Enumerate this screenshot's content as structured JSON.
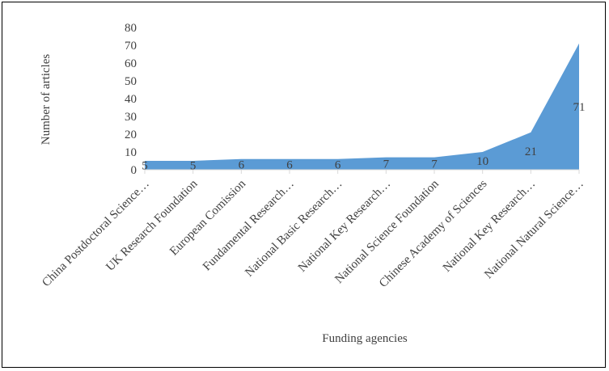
{
  "chart_data": {
    "type": "area",
    "categories": [
      "China Postdoctoral Science…",
      "UK Research Foundation",
      "European Comission",
      "Fundamental Research…",
      "National Basic Research…",
      "National Key Research…",
      "National Science Foundation",
      "Chinese Academy of Sciences",
      "National Key Research…",
      "National Natural Science…"
    ],
    "values": [
      5,
      5,
      6,
      6,
      6,
      7,
      7,
      10,
      21,
      71
    ],
    "data_labels": [
      "5",
      "5",
      "6",
      "6",
      "6",
      "7",
      "7",
      "10",
      "21",
      "71"
    ],
    "xlabel": "Funding agencies",
    "ylabel": "Number of articles",
    "ylim": [
      0,
      80
    ],
    "yticks": [
      "0",
      "10",
      "20",
      "30",
      "40",
      "50",
      "60",
      "70",
      "80"
    ],
    "grid": false,
    "legend": "none",
    "colors": {
      "area": "#5b9bd5",
      "text": "#404040",
      "axis": "#d9d9d9"
    }
  }
}
